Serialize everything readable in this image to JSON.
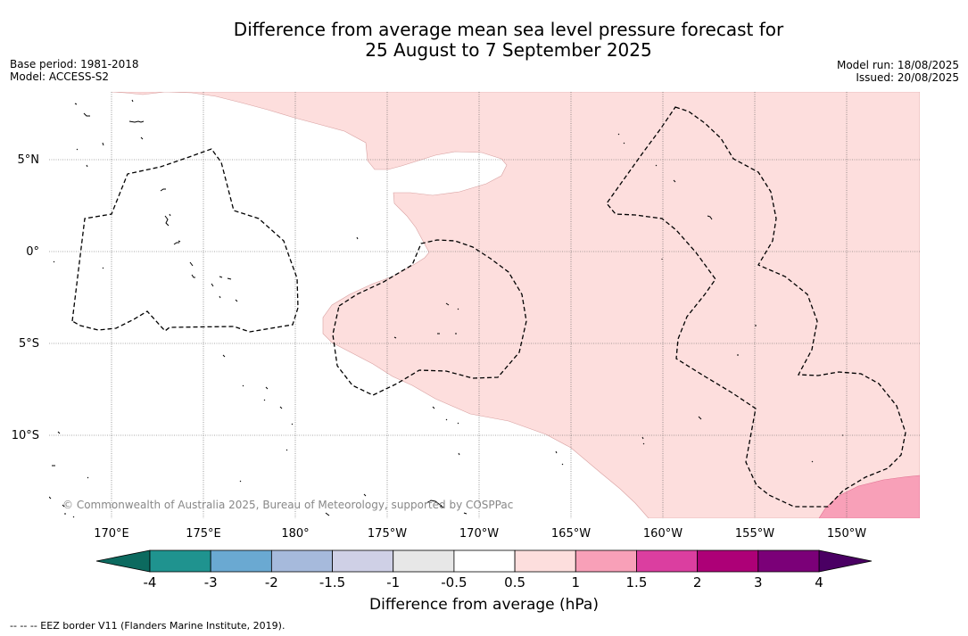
{
  "header": {
    "title_line1": "Difference from average mean sea level pressure forecast for",
    "title_line2": "25 August to 7 September 2025",
    "base_period": "Base period: 1981-2018",
    "model": "Model: ACCESS-S2",
    "model_run": "Model run: 18/08/2025",
    "issued": "Issued: 20/08/2025"
  },
  "map": {
    "lat_labels": [
      "5°N",
      "0°",
      "5°S",
      "10°S"
    ],
    "lon_labels": [
      "170°E",
      "175°E",
      "180°",
      "175°W",
      "170°W",
      "165°W",
      "160°W",
      "155°W",
      "150°W"
    ],
    "copyright": "© Commonwealth of Australia 2025, Bureau of Meteorology, supported by COSPPac",
    "colors": {
      "band_0_5_to_1": "#fddedd",
      "band_1_to_1_5": "#f8a0b8",
      "coast": "#000000",
      "grid": "#555555"
    }
  },
  "colorbar": {
    "ticks": [
      "-4",
      "-3",
      "-2",
      "-1.5",
      "-1",
      "-0.5",
      "0.5",
      "1",
      "1.5",
      "2",
      "3",
      "4"
    ],
    "colors": [
      "#1f938f",
      "#6aa9d2",
      "#a6badc",
      "#cfd0e6",
      "#e7e7e7",
      "#ffffff",
      "#fddedd",
      "#f8a0b8",
      "#db3ea0",
      "#ad0077",
      "#7b0078"
    ],
    "extend_low_color": "#0c6a5f",
    "extend_high_color": "#4a0063",
    "label": "Difference from average (hPa)"
  },
  "footnote": "--  --  -- EEZ border V11 (Flanders Marine Institute, 2019)."
}
